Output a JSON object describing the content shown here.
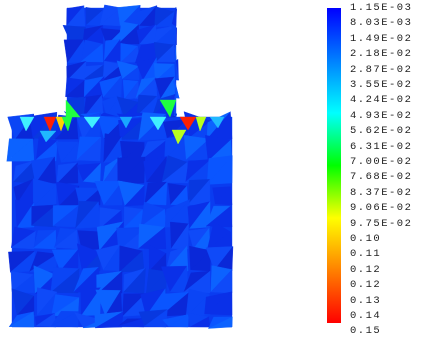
{
  "colorbar": {
    "stops": [
      "#0000ff",
      "#0040ff",
      "#0080ff",
      "#00c0ff",
      "#00ffff",
      "#00ff80",
      "#00ff00",
      "#80ff00",
      "#ffff00",
      "#ffc000",
      "#ff8000",
      "#ff4000",
      "#ff0000"
    ],
    "labels": [
      "1.15E-03",
      "8.03E-03",
      "1.49E-02",
      "2.18E-02",
      "2.87E-02",
      "3.55E-02",
      "4.24E-02",
      "4.93E-02",
      "5.62E-02",
      "6.31E-02",
      "7.00E-02",
      "7.68E-02",
      "8.37E-02",
      "9.06E-02",
      "9.75E-02",
      "0.10",
      "0.11",
      "0.12",
      "0.12",
      "0.13",
      "0.14",
      "0.15"
    ]
  },
  "contour": {
    "base_color": "#0a3cf0",
    "hotspot_colors": [
      "#ff2000",
      "#ffd400",
      "#20ff40",
      "#40f0ff",
      "#b8ff20"
    ]
  }
}
